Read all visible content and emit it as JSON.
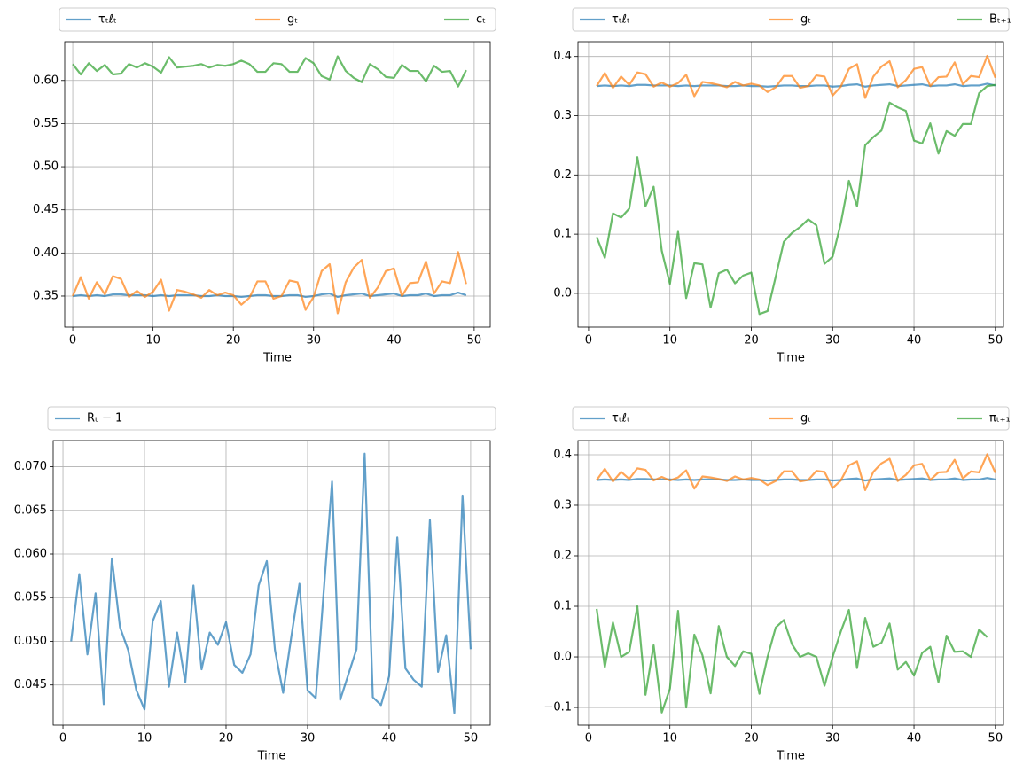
{
  "chart_data": [
    {
      "type": "line",
      "xlabel": "Time",
      "x": [
        0,
        1,
        2,
        3,
        4,
        5,
        6,
        7,
        8,
        9,
        10,
        11,
        12,
        13,
        14,
        15,
        16,
        17,
        18,
        19,
        20,
        21,
        22,
        23,
        24,
        25,
        26,
        27,
        28,
        29,
        30,
        31,
        32,
        33,
        34,
        35,
        36,
        37,
        38,
        39,
        40,
        41,
        42,
        43,
        44,
        45,
        46,
        47,
        48,
        49
      ],
      "xlim": [
        -1,
        52
      ],
      "xticks": [
        0,
        10,
        20,
        30,
        40,
        50
      ],
      "ylim": [
        0.314,
        0.645
      ],
      "yticks": [
        0.35,
        {
          "value": 0.4,
          "label": "0.40"
        },
        0.45,
        {
          "value": 0.5,
          "label": "0.50"
        },
        0.55,
        {
          "value": 0.6,
          "label": "0.60"
        }
      ],
      "grid": true,
      "alpha": 0.7,
      "series": [
        {
          "name": "τₜℓₜ",
          "color": "#1f77b4",
          "values": [
            0.35,
            0.351,
            0.35,
            0.351,
            0.35,
            0.352,
            0.352,
            0.351,
            0.351,
            0.351,
            0.35,
            0.351,
            0.35,
            0.351,
            0.351,
            0.351,
            0.35,
            0.35,
            0.351,
            0.35,
            0.35,
            0.349,
            0.35,
            0.351,
            0.351,
            0.35,
            0.35,
            0.351,
            0.351,
            0.349,
            0.35,
            0.352,
            0.353,
            0.349,
            0.351,
            0.352,
            0.353,
            0.35,
            0.351,
            0.352,
            0.353,
            0.35,
            0.351,
            0.351,
            0.353,
            0.35,
            0.351,
            0.351,
            0.354,
            0.351
          ]
        },
        {
          "name": "gₜ",
          "color": "#ff7f0e",
          "values": [
            0.35,
            0.372,
            0.347,
            0.366,
            0.352,
            0.373,
            0.37,
            0.349,
            0.356,
            0.349,
            0.355,
            0.369,
            0.333,
            0.357,
            0.355,
            0.352,
            0.348,
            0.357,
            0.351,
            0.354,
            0.351,
            0.34,
            0.348,
            0.367,
            0.367,
            0.347,
            0.35,
            0.368,
            0.366,
            0.334,
            0.349,
            0.379,
            0.387,
            0.33,
            0.366,
            0.383,
            0.392,
            0.348,
            0.36,
            0.379,
            0.382,
            0.35,
            0.365,
            0.366,
            0.39,
            0.353,
            0.367,
            0.365,
            0.401,
            0.364
          ]
        },
        {
          "name": "cₜ",
          "color": "#2ca02c",
          "values": [
            0.619,
            0.607,
            0.62,
            0.611,
            0.618,
            0.607,
            0.608,
            0.619,
            0.615,
            0.62,
            0.616,
            0.609,
            0.627,
            0.615,
            0.616,
            0.617,
            0.619,
            0.615,
            0.618,
            0.617,
            0.619,
            0.623,
            0.619,
            0.61,
            0.61,
            0.62,
            0.619,
            0.61,
            0.61,
            0.626,
            0.62,
            0.605,
            0.601,
            0.628,
            0.611,
            0.603,
            0.598,
            0.619,
            0.613,
            0.604,
            0.603,
            0.618,
            0.611,
            0.611,
            0.599,
            0.617,
            0.61,
            0.611,
            0.593,
            0.612
          ]
        }
      ]
    },
    {
      "type": "line",
      "xlabel": "Time",
      "x": [
        1,
        2,
        3,
        4,
        5,
        6,
        7,
        8,
        9,
        10,
        11,
        12,
        13,
        14,
        15,
        16,
        17,
        18,
        19,
        20,
        21,
        22,
        23,
        24,
        25,
        26,
        27,
        28,
        29,
        30,
        31,
        32,
        33,
        34,
        35,
        36,
        37,
        38,
        39,
        40,
        41,
        42,
        43,
        44,
        45,
        46,
        47,
        48,
        49,
        50
      ],
      "xlim": [
        -1.3,
        51
      ],
      "xticks": [
        0,
        10,
        20,
        30,
        40,
        50
      ],
      "ylim": [
        -0.057,
        0.425
      ],
      "yticks": [
        {
          "value": 0,
          "label": "0.0"
        },
        0.1,
        0.2,
        0.3,
        0.4
      ],
      "grid": true,
      "alpha": 0.7,
      "series": [
        {
          "name": "τₜℓₜ",
          "color": "#1f77b4",
          "values": [
            0.35,
            0.351,
            0.35,
            0.351,
            0.35,
            0.352,
            0.352,
            0.351,
            0.351,
            0.351,
            0.35,
            0.351,
            0.35,
            0.351,
            0.351,
            0.351,
            0.35,
            0.35,
            0.351,
            0.35,
            0.35,
            0.349,
            0.35,
            0.351,
            0.351,
            0.35,
            0.35,
            0.351,
            0.351,
            0.349,
            0.35,
            0.352,
            0.353,
            0.349,
            0.351,
            0.352,
            0.353,
            0.35,
            0.351,
            0.352,
            0.353,
            0.35,
            0.351,
            0.351,
            0.353,
            0.35,
            0.351,
            0.351,
            0.354,
            0.351
          ]
        },
        {
          "name": "gₜ",
          "color": "#ff7f0e",
          "values": [
            0.35,
            0.372,
            0.347,
            0.366,
            0.352,
            0.373,
            0.37,
            0.349,
            0.356,
            0.349,
            0.355,
            0.369,
            0.333,
            0.357,
            0.355,
            0.352,
            0.348,
            0.357,
            0.351,
            0.354,
            0.351,
            0.34,
            0.348,
            0.367,
            0.367,
            0.347,
            0.35,
            0.368,
            0.366,
            0.334,
            0.349,
            0.379,
            0.387,
            0.33,
            0.366,
            0.383,
            0.392,
            0.348,
            0.36,
            0.379,
            0.382,
            0.35,
            0.365,
            0.366,
            0.39,
            0.353,
            0.367,
            0.365,
            0.401,
            0.364
          ]
        },
        {
          "name": "Bₜ₊₁",
          "color": "#2ca02c",
          "values": [
            0.095,
            0.06,
            0.135,
            0.128,
            0.143,
            0.23,
            0.147,
            0.18,
            0.072,
            0.016,
            0.104,
            -0.008,
            0.051,
            0.049,
            -0.024,
            0.034,
            0.04,
            0.017,
            0.03,
            0.035,
            -0.035,
            -0.03,
            0.028,
            0.087,
            0.102,
            0.112,
            0.125,
            0.115,
            0.05,
            0.062,
            0.118,
            0.19,
            0.147,
            0.25,
            0.264,
            0.275,
            0.322,
            0.314,
            0.308,
            0.258,
            0.253,
            0.287,
            0.236,
            0.274,
            0.266,
            0.286,
            0.286,
            0.338,
            0.35,
            0.352
          ]
        }
      ]
    },
    {
      "type": "line",
      "xlabel": "Time",
      "x": [
        1,
        2,
        3,
        4,
        5,
        6,
        7,
        8,
        9,
        10,
        11,
        12,
        13,
        14,
        15,
        16,
        17,
        18,
        19,
        20,
        21,
        22,
        23,
        24,
        25,
        26,
        27,
        28,
        29,
        30,
        31,
        32,
        33,
        34,
        35,
        36,
        37,
        38,
        39,
        40,
        41,
        42,
        43,
        44,
        45,
        46,
        47,
        48,
        49,
        50
      ],
      "xlim": [
        -1.2,
        52.4
      ],
      "xticks": [
        0,
        10,
        20,
        30,
        40,
        50
      ],
      "ylim": [
        0.0404,
        0.073
      ],
      "yticks": [
        0.045,
        {
          "value": 0.05,
          "label": "0.050"
        },
        0.055,
        {
          "value": 0.06,
          "label": "0.060"
        },
        0.065,
        {
          "value": 0.07,
          "label": "0.070"
        }
      ],
      "grid": true,
      "alpha": 0.7,
      "series": [
        {
          "name": "Rₜ − 1",
          "color": "#1f77b4",
          "values": [
            0.05,
            0.0577,
            0.0485,
            0.0555,
            0.0428,
            0.0595,
            0.0516,
            0.049,
            0.0444,
            0.0422,
            0.0523,
            0.0546,
            0.0448,
            0.051,
            0.0453,
            0.0564,
            0.0468,
            0.051,
            0.0496,
            0.0522,
            0.0473,
            0.0464,
            0.0485,
            0.0564,
            0.0592,
            0.049,
            0.0441,
            0.0505,
            0.0566,
            0.0444,
            0.0435,
            0.056,
            0.0683,
            0.0433,
            0.0462,
            0.0491,
            0.0715,
            0.0436,
            0.0427,
            0.046,
            0.0619,
            0.0469,
            0.0456,
            0.0448,
            0.0639,
            0.0465,
            0.0507,
            0.0418,
            0.0667,
            0.0491
          ]
        }
      ]
    },
    {
      "type": "line",
      "xlabel": "Time",
      "x": [
        1,
        2,
        3,
        4,
        5,
        6,
        7,
        8,
        9,
        10,
        11,
        12,
        13,
        14,
        15,
        16,
        17,
        18,
        19,
        20,
        21,
        22,
        23,
        24,
        25,
        26,
        27,
        28,
        29,
        30,
        31,
        32,
        33,
        34,
        35,
        36,
        37,
        38,
        39,
        40,
        41,
        42,
        43,
        44,
        45,
        46,
        47,
        48,
        49,
        50
      ],
      "xlim": [
        -1.3,
        51
      ],
      "xticks": [
        0,
        10,
        20,
        30,
        40,
        50
      ],
      "ylim": [
        -0.135,
        0.428
      ],
      "yticks": [
        {
          "value": -0.1,
          "label": "−0.1"
        },
        {
          "value": 0,
          "label": "0.0"
        },
        0.1,
        0.2,
        0.3,
        0.4
      ],
      "grid": true,
      "alpha": 0.7,
      "series": [
        {
          "name": "τₜℓₜ",
          "color": "#1f77b4",
          "values": [
            0.35,
            0.351,
            0.35,
            0.351,
            0.35,
            0.352,
            0.352,
            0.351,
            0.351,
            0.351,
            0.35,
            0.351,
            0.35,
            0.351,
            0.351,
            0.351,
            0.35,
            0.35,
            0.351,
            0.35,
            0.35,
            0.349,
            0.35,
            0.351,
            0.351,
            0.35,
            0.35,
            0.351,
            0.351,
            0.349,
            0.35,
            0.352,
            0.353,
            0.349,
            0.351,
            0.352,
            0.353,
            0.35,
            0.351,
            0.352,
            0.353,
            0.35,
            0.351,
            0.351,
            0.353,
            0.35,
            0.351,
            0.351,
            0.354,
            0.351
          ]
        },
        {
          "name": "gₜ",
          "color": "#ff7f0e",
          "values": [
            0.35,
            0.372,
            0.347,
            0.366,
            0.352,
            0.373,
            0.37,
            0.349,
            0.356,
            0.349,
            0.355,
            0.369,
            0.333,
            0.357,
            0.355,
            0.352,
            0.348,
            0.357,
            0.351,
            0.354,
            0.351,
            0.34,
            0.348,
            0.367,
            0.367,
            0.347,
            0.35,
            0.368,
            0.366,
            0.334,
            0.349,
            0.379,
            0.387,
            0.33,
            0.366,
            0.383,
            0.392,
            0.348,
            0.36,
            0.379,
            0.382,
            0.35,
            0.365,
            0.366,
            0.39,
            0.353,
            0.367,
            0.365,
            0.401,
            0.364
          ]
        },
        {
          "name": "πₜ₊₁",
          "color": "#2ca02c",
          "values": [
            0.095,
            -0.02,
            0.068,
            0.0,
            0.01,
            0.1,
            -0.075,
            0.023,
            -0.11,
            -0.063,
            0.091,
            -0.1,
            0.044,
            0.003,
            -0.072,
            0.061,
            0.0,
            -0.018,
            0.011,
            0.006,
            -0.073,
            0.0,
            0.058,
            0.073,
            0.025,
            0.0,
            0.007,
            0.0,
            -0.057,
            0.0,
            0.05,
            0.093,
            -0.022,
            0.077,
            0.02,
            0.028,
            0.066,
            -0.025,
            -0.01,
            -0.037,
            0.008,
            0.02,
            -0.05,
            0.042,
            0.01,
            0.011,
            0.0,
            0.054,
            0.039,
            null
          ]
        }
      ]
    }
  ]
}
